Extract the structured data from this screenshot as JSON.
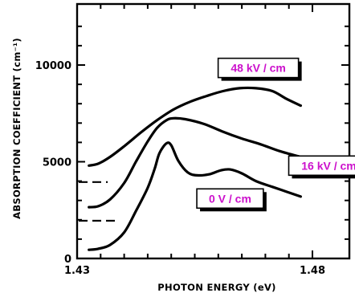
{
  "chart_data": {
    "type": "line",
    "title": "",
    "xlabel": "PHOTON ENERGY (eV)",
    "ylabel": "ABSORPTION COEFFICIENT (cm⁻¹)",
    "xlim": [
      1.43,
      1.48
    ],
    "ylim": [
      0,
      12500
    ],
    "x_ticks": [
      "1.43",
      "1.48"
    ],
    "y_ticks": [
      "0",
      "5000",
      "10000"
    ],
    "grid": false,
    "legend": "none",
    "series": [
      {
        "name": "48 kV / cm",
        "x": [
          1.4325,
          1.4345,
          1.437,
          1.44,
          1.4435,
          1.447,
          1.4505,
          1.454,
          1.4575,
          1.461,
          1.4645,
          1.468,
          1.4715,
          1.4745,
          1.4775
        ],
        "y": [
          4800,
          4900,
          5250,
          5800,
          6500,
          7150,
          7700,
          8100,
          8400,
          8650,
          8800,
          8800,
          8650,
          8250,
          7900
        ]
      },
      {
        "name": "16 kV / cm",
        "x": [
          1.4325,
          1.4345,
          1.437,
          1.44,
          1.4425,
          1.445,
          1.447,
          1.449,
          1.4505,
          1.453,
          1.457,
          1.461,
          1.465,
          1.469,
          1.473,
          1.4775
        ],
        "y": [
          2650,
          2700,
          3050,
          3900,
          5000,
          6050,
          6750,
          7150,
          7250,
          7200,
          6950,
          6550,
          6200,
          5900,
          5550,
          5250
        ]
      },
      {
        "name": "0 V / cm",
        "x": [
          1.4325,
          1.4345,
          1.437,
          1.44,
          1.4425,
          1.445,
          1.4465,
          1.4475,
          1.449,
          1.45,
          1.4515,
          1.4535,
          1.4555,
          1.458,
          1.4605,
          1.4625,
          1.465,
          1.468,
          1.4715,
          1.4745,
          1.4775
        ],
        "y": [
          450,
          500,
          700,
          1350,
          2450,
          3650,
          4650,
          5450,
          5950,
          5850,
          5050,
          4450,
          4300,
          4350,
          4550,
          4600,
          4400,
          4000,
          3700,
          3450,
          3200
        ]
      }
    ],
    "dashed_baselines": [
      {
        "y": 3950,
        "x": [
          1.43,
          1.4365
        ]
      },
      {
        "y": 1950,
        "x": [
          1.43,
          1.4385
        ]
      }
    ],
    "annotations": [
      {
        "text": "48 kV / cm",
        "x": 1.4685,
        "y": 9850,
        "color": "#cc11cc"
      },
      {
        "text": "16 kV / cm",
        "x": 1.4835,
        "y": 4800,
        "color": "#cc11cc"
      },
      {
        "text": "0 V / cm",
        "x": 1.4625,
        "y": 3100,
        "color": "#cc11cc"
      }
    ]
  }
}
